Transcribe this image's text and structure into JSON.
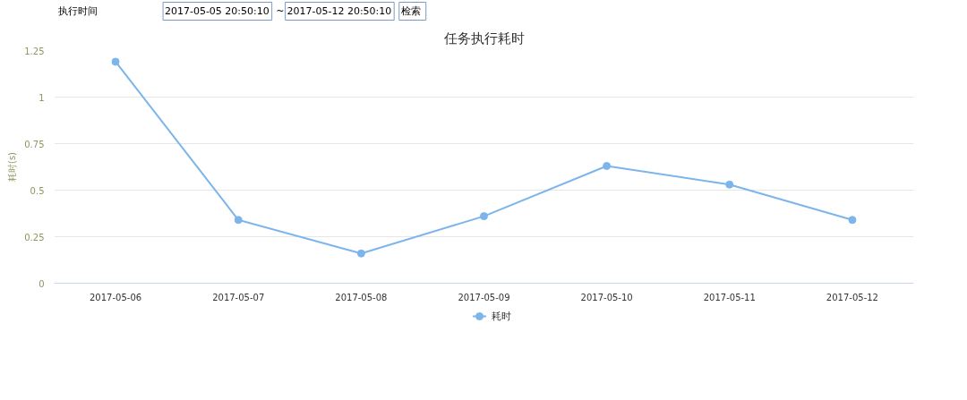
{
  "chart_data": {
    "type": "line",
    "title": "任务执行耗时",
    "ylabel": "耗时(s)",
    "categories": [
      "2017-05-06",
      "2017-05-07",
      "2017-05-08",
      "2017-05-09",
      "2017-05-10",
      "2017-05-11",
      "2017-05-12"
    ],
    "series": [
      {
        "name": "耗时",
        "color": "#7cb5ec",
        "values": [
          1.19,
          0.34,
          0.16,
          0.36,
          0.63,
          0.53,
          0.34
        ]
      }
    ],
    "ylim": [
      0,
      1.25
    ],
    "yticks": [
      0,
      0.25,
      0.5,
      0.75,
      1,
      1.25
    ],
    "grid": "y",
    "legend": "bottom",
    "marker": "circle",
    "line_style": "solid",
    "annotations": [
      "执行时间",
      "2017-05-05 20:50:10",
      "~",
      "2017-05-12 20:50:10",
      "检索"
    ]
  }
}
